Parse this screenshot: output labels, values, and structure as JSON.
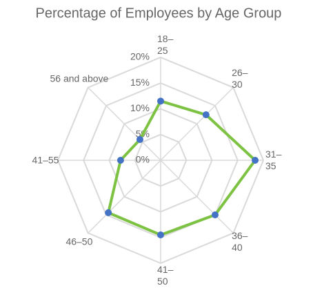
{
  "chart_data": {
    "type": "radar",
    "title": "Percentage of Employees by Age Group",
    "categories": [
      "18–25",
      "26–30",
      "31–35",
      "36–40",
      "41–50",
      "46–50",
      "41–55",
      "56 and above"
    ],
    "values": [
      11.5,
      12.5,
      18.4,
      15,
      14.5,
      14.4,
      7.8,
      5.7
    ],
    "ylim": [
      0,
      20
    ],
    "yticks": [
      {
        "value": 0,
        "label": "0%"
      },
      {
        "value": 5,
        "label": "5%"
      },
      {
        "value": 10,
        "label": "10%"
      },
      {
        "value": 15,
        "label": "15%"
      },
      {
        "value": 20,
        "label": "20%"
      }
    ],
    "line_color": "#7dc242",
    "marker_color": "#4472c4",
    "grid": true
  }
}
